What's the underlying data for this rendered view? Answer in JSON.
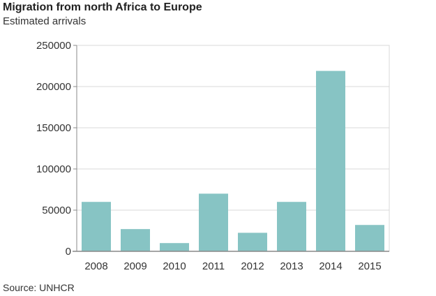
{
  "chart_data": {
    "type": "bar",
    "title": "Migration from north Africa to Europe",
    "subtitle": "Estimated arrivals",
    "source": "Source: UNHCR",
    "xlabel": "",
    "ylabel": "",
    "categories": [
      "2008",
      "2009",
      "2010",
      "2011",
      "2012",
      "2013",
      "2014",
      "2015"
    ],
    "values": [
      60000,
      27000,
      10000,
      70000,
      22500,
      60000,
      219000,
      32000
    ],
    "ylim": [
      0,
      250000
    ],
    "yticks": [
      0,
      50000,
      100000,
      150000,
      200000,
      250000
    ],
    "ytick_labels": [
      "0",
      "50000",
      "100000",
      "150000",
      "200000",
      "250000"
    ],
    "grid": true,
    "bar_color": "#87c4c4",
    "grid_color": "#d9d9d9",
    "axis_color": "#888888"
  }
}
